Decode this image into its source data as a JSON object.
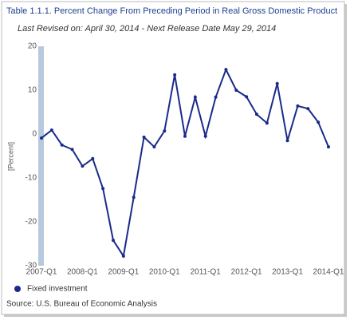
{
  "chart_data": {
    "type": "line",
    "title": "Table 1.1.1. Percent Change From Preceding Period in Real Gross Domestic Product",
    "subtitle": "Last Revised on: April 30, 2014 - Next Release Date May 29, 2014",
    "y_label": "[Percent]",
    "source": "Source: U.S. Bureau of Economic Analysis",
    "categories": [
      "2007-Q1",
      null,
      null,
      null,
      "2008-Q1",
      null,
      null,
      null,
      "2009-Q1",
      null,
      null,
      null,
      "2010-Q1",
      null,
      null,
      null,
      "2011-Q1",
      null,
      null,
      null,
      "2012-Q1",
      null,
      null,
      null,
      "2013-Q1",
      null,
      null,
      null,
      "2014-Q1"
    ],
    "series": [
      {
        "name": "Fixed investment",
        "color": "#1a2a8a",
        "values": [
          -0.9,
          0.9,
          -2.5,
          -3.5,
          -7.3,
          -5.6,
          -12.4,
          -24.2,
          -27.8,
          -14.4,
          -0.7,
          -2.9,
          0.7,
          13.5,
          -0.5,
          8.4,
          -0.5,
          8.4,
          14.7,
          10.0,
          8.5,
          4.5,
          2.5,
          11.5,
          -1.5,
          6.4,
          5.8,
          2.7,
          -2.9
        ]
      }
    ],
    "ylim": [
      -30,
      20
    ],
    "yticks": [
      -30,
      -20,
      -10,
      0,
      10,
      20
    ],
    "grid": false,
    "legend": "bottom-left"
  }
}
